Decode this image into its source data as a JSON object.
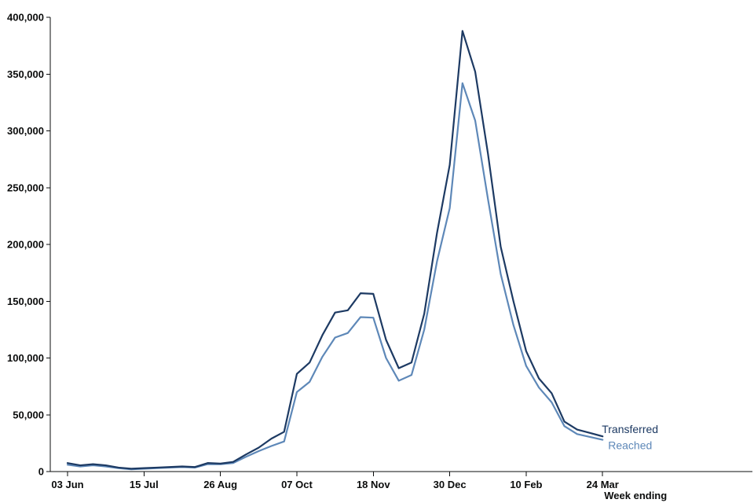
{
  "chart_data": {
    "type": "line",
    "title": "",
    "xlabel": "Week ending",
    "ylabel": "",
    "ylim": [
      0,
      400000
    ],
    "y_ticks": [
      0,
      50000,
      100000,
      150000,
      200000,
      250000,
      300000,
      350000,
      400000
    ],
    "y_tick_labels": [
      "0",
      "50,000",
      "100,000",
      "150,000",
      "200,000",
      "250,000",
      "300,000",
      "350,000",
      "400,000"
    ],
    "x_tick_labels": [
      "03 Jun",
      "15 Jul",
      "26 Aug",
      "07 Oct",
      "18 Nov",
      "30 Dec",
      "10 Feb",
      "24 Mar"
    ],
    "x": [
      "03 Jun",
      "10 Jun",
      "17 Jun",
      "24 Jun",
      "01 Jul",
      "08 Jul",
      "15 Jul",
      "22 Jul",
      "29 Jul",
      "05 Aug",
      "12 Aug",
      "19 Aug",
      "26 Aug",
      "02 Sep",
      "09 Sep",
      "16 Sep",
      "23 Sep",
      "30 Sep",
      "07 Oct",
      "14 Oct",
      "21 Oct",
      "28 Oct",
      "04 Nov",
      "11 Nov",
      "18 Nov",
      "25 Nov",
      "02 Dec",
      "09 Dec",
      "16 Dec",
      "23 Dec",
      "30 Dec",
      "06 Jan",
      "13 Jan",
      "20 Jan",
      "27 Jan",
      "03 Feb",
      "10 Feb",
      "17 Feb",
      "24 Feb",
      "03 Mar",
      "10 Mar",
      "17 Mar",
      "24 Mar"
    ],
    "grid": false,
    "legend": "inline at line ends",
    "series": [
      {
        "name": "Transferred",
        "color": "#1d3a63",
        "values": [
          7500,
          5500,
          6500,
          5500,
          3500,
          2500,
          3000,
          3500,
          4000,
          4500,
          4000,
          7500,
          7000,
          8500,
          15000,
          21000,
          29000,
          35000,
          86000,
          96000,
          120000,
          140000,
          142000,
          157000,
          156500,
          116000,
          91000,
          96000,
          139000,
          210000,
          270000,
          388000,
          352000,
          280000,
          198000,
          150000,
          106000,
          82000,
          69000,
          44000,
          37000,
          34000,
          31000
        ]
      },
      {
        "name": "Reached",
        "color": "#5e88b8",
        "values": [
          6000,
          4500,
          5500,
          4500,
          3000,
          2000,
          2500,
          3000,
          3500,
          4000,
          3500,
          6500,
          6500,
          7500,
          13000,
          18000,
          22500,
          26500,
          70000,
          79000,
          101000,
          118000,
          122000,
          136000,
          135500,
          100000,
          80000,
          85000,
          125000,
          185000,
          232000,
          342000,
          309000,
          240000,
          174000,
          129000,
          93000,
          74000,
          61000,
          40000,
          33000,
          30500,
          28000
        ]
      }
    ]
  }
}
